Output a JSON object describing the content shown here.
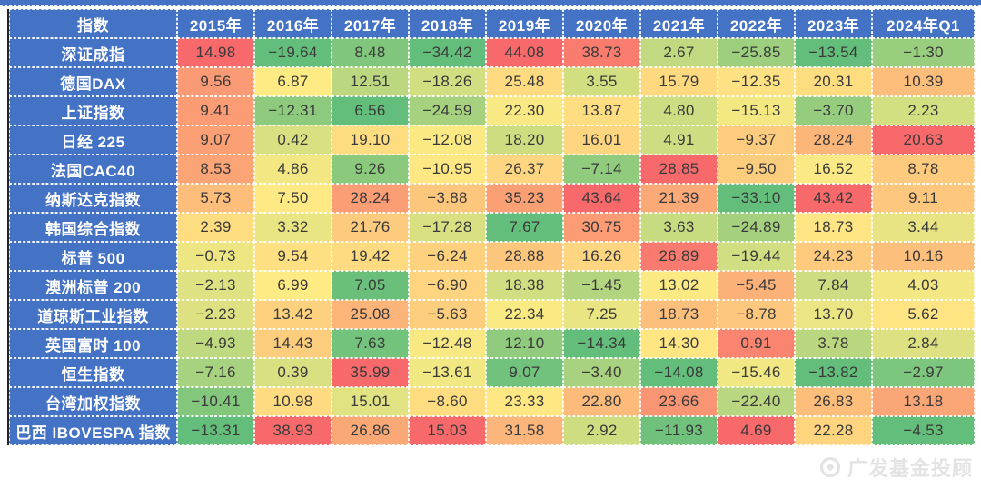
{
  "colors": {
    "header_bg": "#4472C4",
    "index_col_bg": "#4472C4",
    "cell_text": "#3A3A3A",
    "grid_line": "#FFFFFF",
    "table_left_edge": "#23232B",
    "watermark_text_color": "#E3E3E3"
  },
  "watermark": {
    "text": "广发基金投顾",
    "logo": "gf-fund-logo-icon"
  },
  "chart_data": {
    "type": "heatmap",
    "title": "",
    "columns": [
      "指数",
      "2015年",
      "2016年",
      "2017年",
      "2018年",
      "2019年",
      "2020年",
      "2021年",
      "2022年",
      "2023年",
      "2024年Q1"
    ],
    "rows": [
      "深证成指",
      "德国DAX",
      "上证指数",
      "日经 225",
      "法国CAC40",
      "纳斯达克指数",
      "韩国综合指数",
      "标普 500",
      "澳洲标普 200",
      "道琼斯工业指数",
      "英国富时 100",
      "恒生指数",
      "台湾加权指数",
      "巴西 IBOVESPA 指数"
    ],
    "series": [
      {
        "name": "深证成指",
        "values": [
          14.98,
          -19.64,
          8.48,
          -34.42,
          44.08,
          38.73,
          2.67,
          -25.85,
          -13.54,
          -1.3
        ]
      },
      {
        "name": "德国DAX",
        "values": [
          9.56,
          6.87,
          12.51,
          -18.26,
          25.48,
          3.55,
          15.79,
          -12.35,
          20.31,
          10.39
        ]
      },
      {
        "name": "上证指数",
        "values": [
          9.41,
          -12.31,
          6.56,
          -24.59,
          22.3,
          13.87,
          4.8,
          -15.13,
          -3.7,
          2.23
        ]
      },
      {
        "name": "日经 225",
        "values": [
          9.07,
          0.42,
          19.1,
          -12.08,
          18.2,
          16.01,
          4.91,
          -9.37,
          28.24,
          20.63
        ]
      },
      {
        "name": "法国CAC40",
        "values": [
          8.53,
          4.86,
          9.26,
          -10.95,
          26.37,
          -7.14,
          28.85,
          -9.5,
          16.52,
          8.78
        ]
      },
      {
        "name": "纳斯达克指数",
        "values": [
          5.73,
          7.5,
          28.24,
          -3.88,
          35.23,
          43.64,
          21.39,
          -33.1,
          43.42,
          9.11
        ]
      },
      {
        "name": "韩国综合指数",
        "values": [
          2.39,
          3.32,
          21.76,
          -17.28,
          7.67,
          30.75,
          3.63,
          -24.89,
          18.73,
          3.44
        ]
      },
      {
        "name": "标普 500",
        "values": [
          -0.73,
          9.54,
          19.42,
          -6.24,
          28.88,
          16.26,
          26.89,
          -19.44,
          24.23,
          10.16
        ]
      },
      {
        "name": "澳洲标普 200",
        "values": [
          -2.13,
          6.99,
          7.05,
          -6.9,
          18.38,
          -1.45,
          13.02,
          -5.45,
          7.84,
          4.03
        ]
      },
      {
        "name": "道琼斯工业指数",
        "values": [
          -2.23,
          13.42,
          25.08,
          -5.63,
          22.34,
          7.25,
          18.73,
          -8.78,
          13.7,
          5.62
        ]
      },
      {
        "name": "英国富时 100",
        "values": [
          -4.93,
          14.43,
          7.63,
          -12.48,
          12.1,
          -14.34,
          14.3,
          0.91,
          3.78,
          2.84
        ]
      },
      {
        "name": "恒生指数",
        "values": [
          -7.16,
          0.39,
          35.99,
          -13.61,
          9.07,
          -3.4,
          -14.08,
          -15.46,
          -13.82,
          -2.97
        ]
      },
      {
        "name": "台湾加权指数",
        "values": [
          -10.41,
          10.98,
          15.01,
          -8.6,
          23.33,
          22.8,
          23.66,
          -22.4,
          26.83,
          13.18
        ]
      },
      {
        "name": "巴西 IBOVESPA 指数",
        "values": [
          -13.31,
          38.93,
          26.86,
          15.03,
          31.58,
          2.92,
          -11.93,
          4.69,
          22.28,
          -4.53
        ]
      }
    ],
    "color_scale": {
      "low": "#63BE7B",
      "mid": "#FFEB84",
      "high": "#F8696B",
      "mapping": "per-column: column min = green, column median = yellow, column max = red"
    },
    "value_format": "two decimals, unicode minus",
    "legend": "none",
    "grid": "white dashed cell borders"
  }
}
